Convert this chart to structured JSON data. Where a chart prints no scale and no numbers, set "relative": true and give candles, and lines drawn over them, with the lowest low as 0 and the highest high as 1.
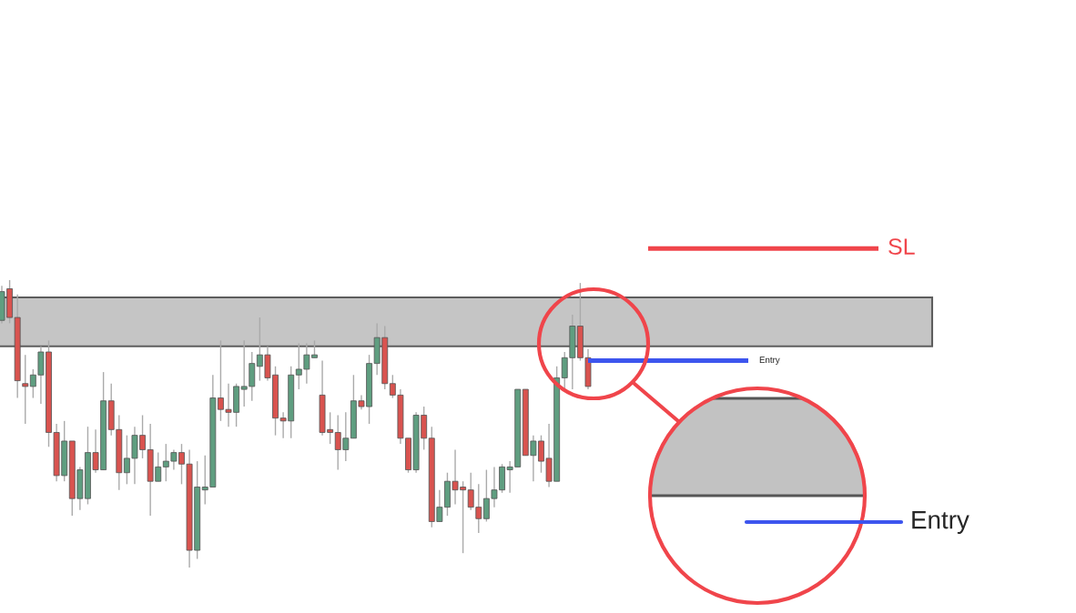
{
  "chart_data": {
    "type": "candlestick",
    "relative": true,
    "categories": [
      null,
      null,
      null,
      null,
      null,
      null,
      null,
      null,
      null,
      null,
      null,
      null,
      null,
      null,
      null,
      null,
      null,
      null,
      null,
      null,
      null,
      null,
      null,
      null,
      null,
      null,
      null,
      null,
      null,
      null,
      null,
      null,
      null,
      null,
      null,
      null,
      null,
      null,
      null,
      null,
      null,
      null,
      null,
      null,
      null,
      null,
      null,
      null,
      null,
      null,
      null,
      null,
      null,
      null,
      null,
      null,
      null,
      null,
      null,
      null,
      null,
      null,
      null,
      null,
      null,
      null,
      null,
      null,
      null,
      null,
      null,
      null,
      null,
      null,
      null,
      null
    ],
    "ohlc": [
      [
        0.86,
        0.98,
        0.85,
        0.96
      ],
      [
        0.97,
        1,
        0.85,
        0.87
      ],
      [
        0.87,
        0.95,
        0.59,
        0.65
      ],
      [
        0.64,
        0.74,
        0.5,
        0.63
      ],
      [
        0.63,
        0.69,
        0.59,
        0.67
      ],
      [
        0.67,
        0.77,
        0.57,
        0.75
      ],
      [
        0.75,
        0.79,
        0.42,
        0.47
      ],
      [
        0.47,
        0.5,
        0.3,
        0.32
      ],
      [
        0.32,
        0.51,
        0.3,
        0.44
      ],
      [
        0.44,
        0.44,
        0.18,
        0.24
      ],
      [
        0.24,
        0.35,
        0.2,
        0.34
      ],
      [
        0.24,
        0.49,
        0.22,
        0.4
      ],
      [
        0.4,
        0.48,
        0.33,
        0.34
      ],
      [
        0.34,
        0.68,
        0.34,
        0.58
      ],
      [
        0.58,
        0.64,
        0.46,
        0.48
      ],
      [
        0.48,
        0.53,
        0.27,
        0.33
      ],
      [
        0.33,
        0.46,
        0.29,
        0.38
      ],
      [
        0.38,
        0.49,
        0.29,
        0.46
      ],
      [
        0.46,
        0.53,
        0.38,
        0.41
      ],
      [
        0.41,
        0.5,
        0.18,
        0.3
      ],
      [
        0.3,
        0.4,
        0.3,
        0.35
      ],
      [
        0.35,
        0.43,
        0.3,
        0.37
      ],
      [
        0.37,
        0.41,
        0.34,
        0.4
      ],
      [
        0.4,
        0.43,
        0.29,
        0.36
      ],
      [
        0.36,
        0.41,
        0,
        0.06
      ],
      [
        0.06,
        0.37,
        0.03,
        0.28
      ],
      [
        0.27,
        0.39,
        0.22,
        0.28
      ],
      [
        0.28,
        0.67,
        0.28,
        0.59
      ],
      [
        0.59,
        0.79,
        0.51,
        0.55
      ],
      [
        0.55,
        0.64,
        0.49,
        0.54
      ],
      [
        0.54,
        0.64,
        0.49,
        0.63
      ],
      [
        0.62,
        0.79,
        0.56,
        0.63
      ],
      [
        0.63,
        0.75,
        0.58,
        0.71
      ],
      [
        0.7,
        0.87,
        0.65,
        0.74
      ],
      [
        0.74,
        0.77,
        0.65,
        0.66
      ],
      [
        0.67,
        0.7,
        0.46,
        0.52
      ],
      [
        0.52,
        0.54,
        0.45,
        0.51
      ],
      [
        0.51,
        0.7,
        0.45,
        0.67
      ],
      [
        0.67,
        0.78,
        0.62,
        0.69
      ],
      [
        0.69,
        0.78,
        0.64,
        0.74
      ],
      [
        0.73,
        0.79,
        0.73,
        0.74
      ],
      [
        0.6,
        0.72,
        0.46,
        0.47
      ],
      [
        0.48,
        0.54,
        0.43,
        0.47
      ],
      [
        0.47,
        0.53,
        0.34,
        0.41
      ],
      [
        0.41,
        0.54,
        0.37,
        0.45
      ],
      [
        0.45,
        0.67,
        0.45,
        0.58
      ],
      [
        0.58,
        0.6,
        0.55,
        0.56
      ],
      [
        0.56,
        0.74,
        0.5,
        0.71
      ],
      [
        0.71,
        0.85,
        0.67,
        0.8
      ],
      [
        0.8,
        0.84,
        0.62,
        0.64
      ],
      [
        0.64,
        0.67,
        0.59,
        0.6
      ],
      [
        0.6,
        0.62,
        0.43,
        0.45
      ],
      [
        0.45,
        0.45,
        0.33,
        0.34
      ],
      [
        0.34,
        0.54,
        0.33,
        0.53
      ],
      [
        0.53,
        0.56,
        0.41,
        0.45
      ],
      [
        0.45,
        0.49,
        0.14,
        0.16
      ],
      [
        0.16,
        0.27,
        0.16,
        0.21
      ],
      [
        0.21,
        0.33,
        0.18,
        0.3
      ],
      [
        0.3,
        0.41,
        0.22,
        0.27
      ],
      [
        0.28,
        0.3,
        0.05,
        0.27
      ],
      [
        0.27,
        0.33,
        0.2,
        0.21
      ],
      [
        0.21,
        0.29,
        0.12,
        0.17
      ],
      [
        0.17,
        0.34,
        0.16,
        0.24
      ],
      [
        0.24,
        0.35,
        0.21,
        0.27
      ],
      [
        0.27,
        0.36,
        0.26,
        0.35
      ],
      [
        0.34,
        0.37,
        0.26,
        0.35
      ],
      [
        0.35,
        0.62,
        0.35,
        0.62
      ],
      [
        0.62,
        0.62,
        0.39,
        0.39
      ],
      [
        0.39,
        0.46,
        0.3,
        0.44
      ],
      [
        0.44,
        0.46,
        0.33,
        0.37
      ],
      [
        0.38,
        0.5,
        0.28,
        0.3
      ],
      [
        0.3,
        0.7,
        0.3,
        0.66
      ],
      [
        0.66,
        0.75,
        0.62,
        0.73
      ],
      [
        0.73,
        0.88,
        0.62,
        0.84
      ],
      [
        0.84,
        0.99,
        0.72,
        0.73
      ],
      [
        0.73,
        0.76,
        0.62,
        0.63
      ]
    ],
    "colors": [
      "#5f9e80",
      "#d9534f",
      "#d9534f",
      "#d9534f",
      "#5f9e80",
      "#5f9e80",
      "#d9534f",
      "#d9534f",
      "#5f9e80",
      "#d9534f",
      "#5f9e80",
      "#5f9e80",
      "#d9534f",
      "#5f9e80",
      "#d9534f",
      "#d9534f",
      "#5f9e80",
      "#5f9e80",
      "#d9534f",
      "#d9534f",
      "#5f9e80",
      "#5f9e80",
      "#5f9e80",
      "#d9534f",
      "#d9534f",
      "#5f9e80",
      "#5f9e80",
      "#5f9e80",
      "#d9534f",
      "#d9534f",
      "#5f9e80",
      "#5f9e80",
      "#5f9e80",
      "#5f9e80",
      "#d9534f",
      "#d9534f",
      "#d9534f",
      "#5f9e80",
      "#5f9e80",
      "#5f9e80",
      "#5f9e80",
      "#d9534f",
      "#d9534f",
      "#d9534f",
      "#5f9e80",
      "#5f9e80",
      "#d9534f",
      "#5f9e80",
      "#5f9e80",
      "#d9534f",
      "#d9534f",
      "#d9534f",
      "#d9534f",
      "#5f9e80",
      "#d9534f",
      "#d9534f",
      "#5f9e80",
      "#5f9e80",
      "#d9534f",
      "#d9534f",
      "#d9534f",
      "#d9534f",
      "#5f9e80",
      "#5f9e80",
      "#5f9e80",
      "#5f9e80",
      "#5f9e80",
      "#d9534f",
      "#5f9e80",
      "#d9534f",
      "#d9534f",
      "#5f9e80",
      "#5f9e80",
      "#5f9e80",
      "#d9534f",
      "#d9534f"
    ],
    "bands": [
      {
        "axis": "y",
        "from": 0.77,
        "to": 0.94,
        "label": null,
        "color": "#c2c2c2"
      }
    ],
    "ref_lines": [
      {
        "axis": "y",
        "value": 1.11,
        "label": "SL",
        "color": "#f0454b",
        "line_style": "solid"
      },
      {
        "axis": "y",
        "value": 0.72,
        "label": "Entry",
        "color": "#3d55ee",
        "line_style": "solid"
      }
    ],
    "annotations": [
      "Entry"
    ]
  }
}
